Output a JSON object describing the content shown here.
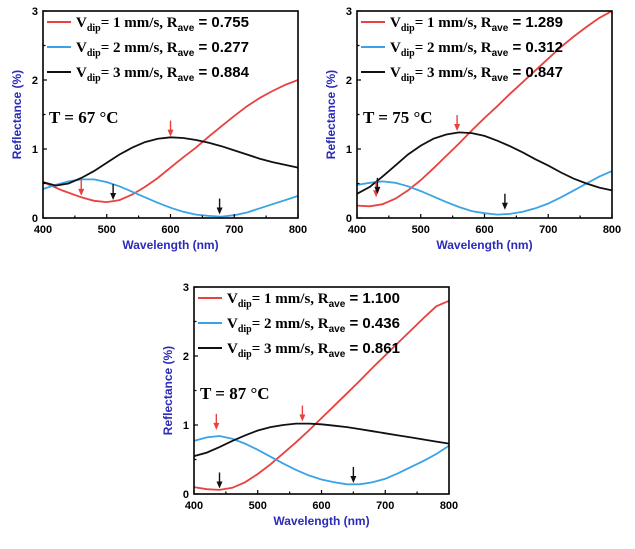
{
  "colors": {
    "series1": "#e8413f",
    "series2": "#3aa3e6",
    "series3": "#111111",
    "axis_label": "#2b2bb8"
  },
  "chart_data": [
    {
      "type": "line",
      "temperature_label": "T = 67 °C",
      "xlabel": "Wavelength (nm)",
      "ylabel": "Reflectance (%)",
      "xlim": [
        400,
        800
      ],
      "ylim": [
        0,
        3
      ],
      "xticks": [
        "400",
        "500",
        "600",
        "700",
        "800"
      ],
      "yticks": [
        "0",
        "1",
        "2",
        "3"
      ],
      "series": [
        {
          "name": "Vdip= 1 mm/s",
          "speed": "1 mm/s",
          "rave": "0.755",
          "x": [
            400,
            430,
            460,
            480,
            500,
            520,
            540,
            560,
            580,
            600,
            620,
            640,
            660,
            680,
            700,
            720,
            740,
            760,
            780,
            800
          ],
          "y": [
            0.52,
            0.4,
            0.3,
            0.25,
            0.23,
            0.26,
            0.34,
            0.45,
            0.58,
            0.73,
            0.88,
            1.02,
            1.18,
            1.33,
            1.48,
            1.62,
            1.74,
            1.84,
            1.93,
            2.0
          ]
        },
        {
          "name": "Vdip= 2 mm/s",
          "speed": "2 mm/s",
          "rave": "0.277",
          "x": [
            400,
            420,
            440,
            460,
            480,
            500,
            520,
            540,
            560,
            580,
            600,
            620,
            640,
            660,
            680,
            700,
            720,
            740,
            760,
            780,
            800
          ],
          "y": [
            0.42,
            0.48,
            0.53,
            0.56,
            0.56,
            0.52,
            0.46,
            0.38,
            0.3,
            0.22,
            0.15,
            0.09,
            0.05,
            0.03,
            0.02,
            0.04,
            0.08,
            0.14,
            0.2,
            0.26,
            0.32
          ]
        },
        {
          "name": "Vdip= 3 mm/s",
          "speed": "3 mm/s",
          "rave": "0.884",
          "x": [
            400,
            420,
            440,
            460,
            480,
            500,
            520,
            540,
            560,
            580,
            600,
            620,
            640,
            660,
            680,
            700,
            720,
            740,
            760,
            780,
            800
          ],
          "y": [
            0.52,
            0.47,
            0.5,
            0.58,
            0.68,
            0.8,
            0.92,
            1.02,
            1.1,
            1.15,
            1.17,
            1.16,
            1.13,
            1.09,
            1.04,
            0.98,
            0.92,
            0.86,
            0.81,
            0.77,
            0.73
          ]
        }
      ],
      "arrows": [
        {
          "series": 1,
          "x": 460,
          "y": 0.32
        },
        {
          "series": 1,
          "x": 600,
          "y": 1.18
        },
        {
          "series": 3,
          "x": 510,
          "y": 0.26
        },
        {
          "series": 3,
          "x": 677,
          "y": 0.05
        }
      ]
    },
    {
      "type": "line",
      "temperature_label": "T = 75 °C",
      "xlabel": "Wavelength (nm)",
      "ylabel": "Reflectance (%)",
      "xlim": [
        400,
        800
      ],
      "ylim": [
        0,
        3
      ],
      "xticks": [
        "400",
        "500",
        "600",
        "700",
        "800"
      ],
      "yticks": [
        "0",
        "1",
        "2",
        "3"
      ],
      "series": [
        {
          "name": "Vdip= 1 mm/s",
          "speed": "1 mm/s",
          "rave": "1.289",
          "x": [
            400,
            420,
            440,
            460,
            480,
            500,
            520,
            540,
            560,
            580,
            600,
            620,
            640,
            660,
            680,
            700,
            720,
            740,
            760,
            780,
            800
          ],
          "y": [
            0.18,
            0.17,
            0.2,
            0.28,
            0.4,
            0.55,
            0.72,
            0.9,
            1.08,
            1.27,
            1.45,
            1.62,
            1.8,
            1.97,
            2.14,
            2.31,
            2.48,
            2.63,
            2.77,
            2.9,
            3.0
          ]
        },
        {
          "name": "Vdip= 2 mm/s",
          "speed": "2 mm/s",
          "rave": "0.312",
          "x": [
            400,
            420,
            440,
            460,
            480,
            500,
            520,
            540,
            560,
            580,
            600,
            620,
            640,
            660,
            680,
            700,
            720,
            740,
            760,
            780,
            800
          ],
          "y": [
            0.48,
            0.51,
            0.53,
            0.51,
            0.46,
            0.39,
            0.31,
            0.23,
            0.16,
            0.1,
            0.07,
            0.05,
            0.06,
            0.09,
            0.14,
            0.21,
            0.3,
            0.4,
            0.5,
            0.6,
            0.68
          ]
        },
        {
          "name": "Vdip= 3 mm/s",
          "speed": "3 mm/s",
          "rave": "0.847",
          "x": [
            400,
            420,
            440,
            460,
            480,
            500,
            520,
            540,
            560,
            580,
            600,
            620,
            640,
            660,
            680,
            700,
            720,
            740,
            760,
            780,
            800
          ],
          "y": [
            0.35,
            0.45,
            0.6,
            0.76,
            0.92,
            1.05,
            1.15,
            1.21,
            1.24,
            1.23,
            1.19,
            1.12,
            1.04,
            0.95,
            0.85,
            0.76,
            0.66,
            0.57,
            0.5,
            0.44,
            0.4
          ]
        }
      ],
      "arrows": [
        {
          "series": 1,
          "x": 430,
          "y": 0.3
        },
        {
          "series": 1,
          "x": 557,
          "y": 1.26
        },
        {
          "series": 3,
          "x": 432,
          "y": 0.35
        },
        {
          "series": 3,
          "x": 632,
          "y": 0.12
        }
      ]
    },
    {
      "type": "line",
      "temperature_label": "T = 87 °C",
      "xlabel": "Wavelength (nm)",
      "ylabel": "Reflectance (%)",
      "xlim": [
        400,
        800
      ],
      "ylim": [
        0,
        3
      ],
      "xticks": [
        "400",
        "500",
        "600",
        "700",
        "800"
      ],
      "yticks": [
        "0",
        "1",
        "2",
        "3"
      ],
      "series": [
        {
          "name": "Vdip= 1 mm/s",
          "speed": "1 mm/s",
          "rave": "1.100",
          "x": [
            400,
            420,
            440,
            460,
            480,
            500,
            520,
            540,
            560,
            580,
            600,
            620,
            640,
            660,
            680,
            700,
            720,
            740,
            760,
            780,
            800
          ],
          "y": [
            0.1,
            0.07,
            0.06,
            0.09,
            0.17,
            0.29,
            0.43,
            0.59,
            0.75,
            0.92,
            1.1,
            1.28,
            1.46,
            1.64,
            1.83,
            2.01,
            2.19,
            2.37,
            2.55,
            2.72,
            2.8
          ]
        },
        {
          "name": "Vdip= 2 mm/s",
          "speed": "2 mm/s",
          "rave": "0.436",
          "x": [
            400,
            420,
            440,
            460,
            480,
            500,
            520,
            540,
            560,
            580,
            600,
            620,
            640,
            660,
            680,
            700,
            720,
            740,
            760,
            780,
            800
          ],
          "y": [
            0.77,
            0.82,
            0.84,
            0.8,
            0.73,
            0.64,
            0.54,
            0.44,
            0.35,
            0.27,
            0.21,
            0.17,
            0.14,
            0.14,
            0.17,
            0.22,
            0.3,
            0.39,
            0.48,
            0.58,
            0.7
          ]
        },
        {
          "name": "Vdip= 3 mm/s",
          "speed": "3 mm/s",
          "rave": "0.861",
          "x": [
            400,
            420,
            440,
            460,
            480,
            500,
            520,
            540,
            560,
            580,
            600,
            620,
            640,
            660,
            680,
            700,
            720,
            740,
            760,
            780,
            800
          ],
          "y": [
            0.55,
            0.6,
            0.68,
            0.77,
            0.85,
            0.92,
            0.97,
            1.0,
            1.02,
            1.02,
            1.01,
            0.99,
            0.97,
            0.94,
            0.91,
            0.88,
            0.85,
            0.82,
            0.79,
            0.76,
            0.73
          ]
        }
      ],
      "arrows": [
        {
          "series": 1,
          "x": 435,
          "y": 0.93
        },
        {
          "series": 1,
          "x": 570,
          "y": 1.05
        },
        {
          "series": 3,
          "x": 440,
          "y": 0.08
        },
        {
          "series": 3,
          "x": 650,
          "y": 0.16
        }
      ]
    }
  ]
}
